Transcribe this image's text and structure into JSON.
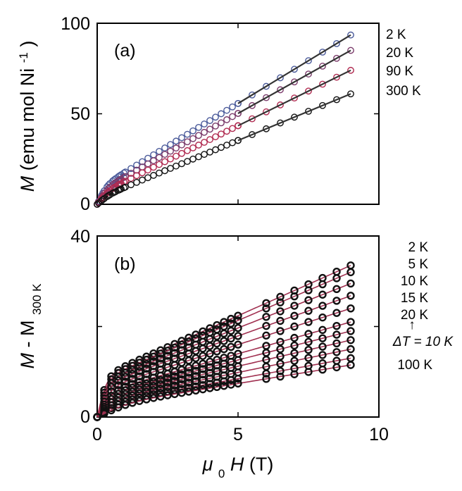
{
  "chart_data": [
    {
      "type": "scatter",
      "panel_label": "(a)",
      "ylabel": {
        "main": "M",
        "rest": "(emu mol Ni",
        "sup": "-1",
        "close": ")"
      },
      "xlim": [
        0,
        10
      ],
      "ylim": [
        0,
        100
      ],
      "yticks": [
        0,
        50,
        100
      ],
      "ytick_labels": [
        "0",
        "50",
        "100"
      ],
      "xticks": [
        0,
        5,
        10
      ],
      "series": [
        {
          "name": "2 K",
          "color": "#4a5a9a",
          "label_value": 93.5
        },
        {
          "name": "20 K",
          "color": "#7a3a6a",
          "label_value": 85.0
        },
        {
          "name": "90 K",
          "color": "#b02a50",
          "label_value": 74.0
        },
        {
          "name": "300 K",
          "color": "#111111",
          "label_value": 61.0
        }
      ],
      "curve_params": [
        {
          "a": 7.4,
          "k": 2.8,
          "s": 8.3,
          "bias": 1.5
        },
        {
          "a": 6.0,
          "k": 2.6,
          "s": 7.8,
          "bias": 1.2
        },
        {
          "a": 4.8,
          "k": 2.4,
          "s": 7.1,
          "bias": 1.0
        },
        {
          "a": 3.0,
          "k": 2.2,
          "s": 6.2,
          "bias": 0.8
        }
      ]
    },
    {
      "type": "scatter",
      "panel_label": "(b)",
      "ylabel": {
        "main": "M",
        "rest": " - M",
        "sub": "300 K"
      },
      "xlabel": {
        "main": "μ",
        "sub": "0",
        "italic": "H",
        "rest": " (T)"
      },
      "xlim": [
        0,
        10
      ],
      "ylim": [
        0,
        40
      ],
      "yticks": [
        0,
        20,
        40
      ],
      "ytick_labels": [
        "0",
        "",
        "40"
      ],
      "xticks": [
        0,
        5,
        10
      ],
      "xtick_labels": [
        "0",
        "5",
        "10"
      ],
      "legend_labels": [
        "2 K",
        "5 K",
        "10 K",
        "15 K",
        "20 K",
        "ΔT = 10 K",
        "100 K"
      ],
      "legend_arrow": "↑",
      "line_color": "#a03050",
      "marker_color": "#111111",
      "end_values_at_9T": [
        33.5,
        32.0,
        29.5,
        26.8,
        24.0,
        21.0,
        19.0,
        17.0,
        15.0,
        13.0,
        11.5
      ],
      "curve_params": [
        {
          "a": 8.5,
          "k": 2.9
        },
        {
          "a": 8.0,
          "k": 2.7
        },
        {
          "a": 7.4,
          "k": 2.5
        },
        {
          "a": 6.8,
          "k": 2.3
        },
        {
          "a": 6.0,
          "k": 2.1
        },
        {
          "a": 5.2,
          "k": 1.9
        },
        {
          "a": 4.6,
          "k": 1.7
        },
        {
          "a": 4.0,
          "k": 1.5
        },
        {
          "a": 3.4,
          "k": 1.3
        },
        {
          "a": 2.8,
          "k": 1.1
        },
        {
          "a": 2.3,
          "k": 0.9
        }
      ]
    }
  ]
}
